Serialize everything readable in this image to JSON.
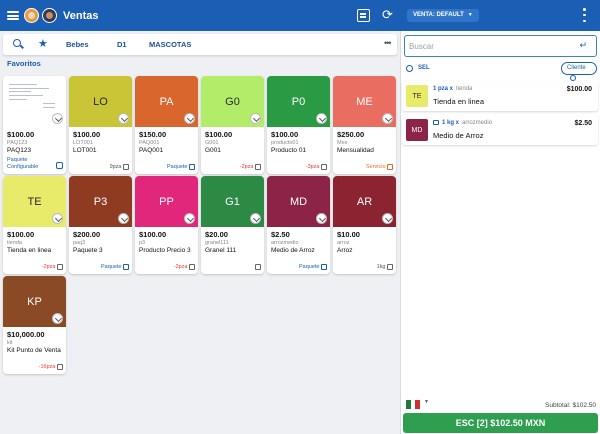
{
  "topbar": {
    "title": "Ventas",
    "venta_label": "VENTA: DEFAULT",
    "color": "#1b5fb4"
  },
  "tabs": [
    {
      "label": "Bebes"
    },
    {
      "label": "D1"
    },
    {
      "label": "MASCOTAS"
    }
  ],
  "favorites_label": "Favoritos",
  "products": [
    {
      "initials": "",
      "image": true,
      "color": "#ffffff",
      "price": "$100.00",
      "code": "PAQ123",
      "name": "PAQ123",
      "stock": "",
      "stock_style": "none",
      "config_label": "Paquete Configurable"
    },
    {
      "initials": "LO",
      "color": "#c9c537",
      "price": "$100.00",
      "code": "LOT001",
      "name": "LOT001",
      "stock": "9pza",
      "stock_style": "grey"
    },
    {
      "initials": "PA",
      "color": "#d9662c",
      "price": "$150.00",
      "code": "PAQ001",
      "name": "PAQ001",
      "stock": "Paquete",
      "stock_style": "blue"
    },
    {
      "initials": "G0",
      "color": "#b3ec68",
      "price": "$100.00",
      "code": "G001",
      "name": "G001",
      "stock": "-2pza",
      "stock_style": "red"
    },
    {
      "initials": "P0",
      "color": "#2b9a45",
      "price": "$100.00",
      "code": "producto01",
      "name": "Producto 01",
      "stock": "-3pza",
      "stock_style": "red"
    },
    {
      "initials": "ME",
      "color": "#e96e61",
      "price": "$250.00",
      "code": "Mes",
      "name": "Mensualidad",
      "stock": "Servicio",
      "stock_style": "orange"
    },
    {
      "initials": "TE",
      "color": "#e8eb6a",
      "price": "$100.00",
      "code": "tienda",
      "name": "Tienda en linea",
      "stock": "-2pza",
      "stock_style": "red"
    },
    {
      "initials": "P3",
      "color": "#8e3b22",
      "price": "$200.00",
      "code": "paq3",
      "name": "Paquete 3",
      "stock": "Paquete",
      "stock_style": "blue"
    },
    {
      "initials": "PP",
      "color": "#e0277c",
      "price": "$100.00",
      "code": "p3",
      "name": "Producto Precio 3",
      "stock": "-2pza",
      "stock_style": "red"
    },
    {
      "initials": "G1",
      "color": "#2c8a45",
      "price": "$20.00",
      "code": "granel111",
      "name": "Granel 111",
      "stock": "",
      "stock_style": "grey"
    },
    {
      "initials": "MD",
      "color": "#8b2446",
      "price": "$2.50",
      "code": "arrozmedio",
      "name": "Medio de Arroz",
      "stock": "Paquete",
      "stock_style": "blue"
    },
    {
      "initials": "AR",
      "color": "#8c2330",
      "price": "$10.00",
      "code": "arroz",
      "name": "Arroz",
      "stock": "1kg",
      "stock_style": "grey"
    },
    {
      "initials": "KP",
      "color": "#8b4a26",
      "price": "$10,000.00",
      "code": "kit",
      "name": "Kit Punto de Venta",
      "stock": "-16pza",
      "stock_style": "red"
    }
  ],
  "search": {
    "placeholder": "Buscar",
    "value": ""
  },
  "sel_label": "SEL",
  "cliente_label": "Cliente",
  "cart": [
    {
      "initials": "TE",
      "color": "#e8eb6a",
      "qty": "1 pza x",
      "code": "tienda",
      "name": "Tienda en linea",
      "amount": "$100.00",
      "pkg_icon": false
    },
    {
      "initials": "MD",
      "color": "#8b2446",
      "qty": "1 kg x",
      "code": "arrozmedio",
      "name": "Medio de Arroz",
      "amount": "$2.50",
      "pkg_icon": true
    }
  ],
  "subtotal": {
    "label": "Subtotal:",
    "value": "$102.50"
  },
  "pay_button": "ESC [2] $102.50 MXN",
  "pay_color": "#2e9e4f"
}
